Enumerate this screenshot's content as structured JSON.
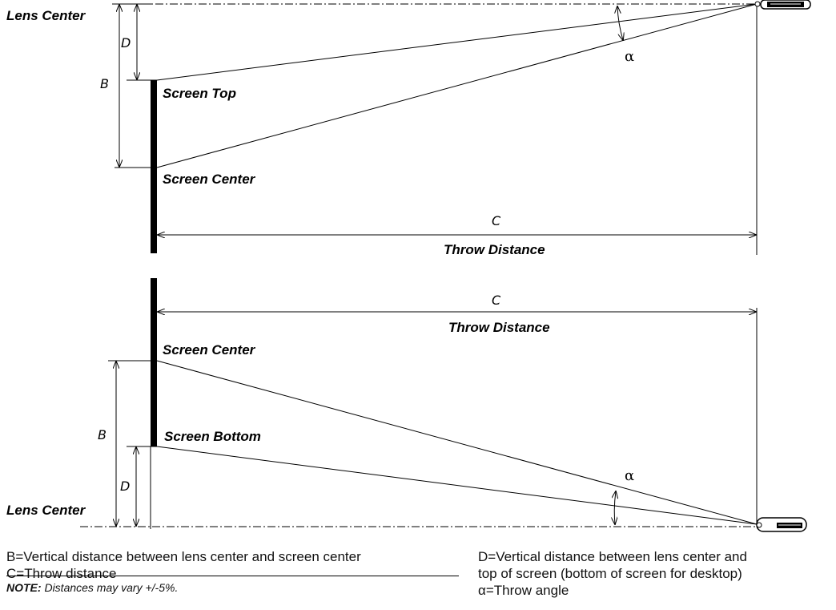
{
  "top": {
    "lens_center": "Lens Center",
    "screen_top": "Screen Top",
    "screen_center": "Screen Center",
    "dim_d": "D",
    "dim_b": "B",
    "dim_c": "C",
    "throw_distance": "Throw Distance",
    "alpha": "α"
  },
  "bottom": {
    "lens_center": "Lens Center",
    "screen_center": "Screen Center",
    "screen_bottom": "Screen Bottom",
    "dim_d": "D",
    "dim_b": "B",
    "dim_c": "C",
    "throw_distance": "Throw Distance",
    "alpha": "α"
  },
  "legend": {
    "b_def": "B=Vertical distance between lens center and screen center",
    "c_def": "C=Throw distance",
    "d_def_line1": "D=Vertical distance between lens center and",
    "d_def_line2": "top of screen (bottom of screen for desktop)",
    "alpha_def": "α=Throw angle"
  },
  "note": {
    "prefix": "NOTE:",
    "text": " Distances may vary +/-5%."
  }
}
